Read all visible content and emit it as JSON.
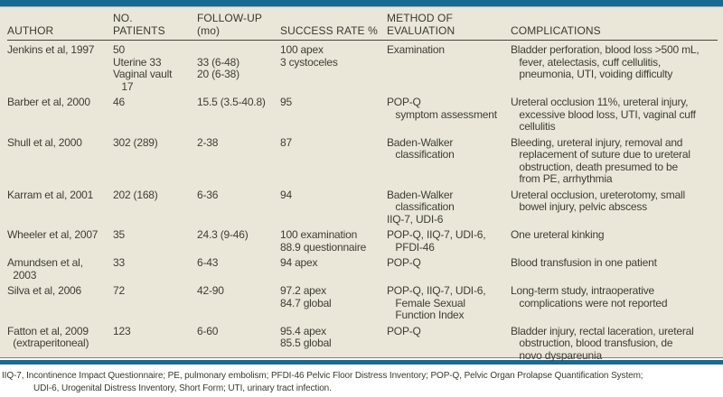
{
  "colors": {
    "accent_bar": "#1a6b93",
    "table_background": "#eae7d8",
    "header_rule": "#45453c",
    "text": "#3e3d34"
  },
  "table": {
    "header": {
      "author": "AUTHOR",
      "patients": "NO.\nPATIENTS",
      "followup": "FOLLOW-UP\n(mo)",
      "success": "SUCCESS RATE %",
      "method": "METHOD OF\nEVALUATION",
      "complications": "COMPLICATIONS"
    },
    "rows": [
      {
        "author": [
          "Jenkins et al, 1997"
        ],
        "patients": [
          "50",
          "Uterine 33",
          "Vaginal vault",
          "   17"
        ],
        "followup": [
          "",
          "33 (6-48)",
          "20 (6-38)"
        ],
        "success": [
          "100 apex",
          "3 cystoceles"
        ],
        "method": [
          "Examination"
        ],
        "complications": [
          "Bladder perforation, blood loss >500 mL,",
          "   fever, atelectasis, cuff cellulitis,",
          "   pneumonia, UTI, voiding difficulty"
        ]
      },
      {
        "author": [
          "Barber et al, 2000"
        ],
        "patients": [
          "46"
        ],
        "followup": [
          "15.5 (3.5-40.8)"
        ],
        "success": [
          "95"
        ],
        "method": [
          "POP-Q",
          "   symptom assessment"
        ],
        "complications": [
          "Ureteral occlusion 11%, ureteral injury,",
          "   excessive blood loss, UTI, vaginal cuff",
          "   cellulitis"
        ]
      },
      {
        "author": [
          "Shull et al, 2000"
        ],
        "patients": [
          "302 (289)"
        ],
        "followup": [
          "2-38"
        ],
        "success": [
          "87"
        ],
        "method": [
          "Baden-Walker",
          "   classification"
        ],
        "complications": [
          "Bleeding, ureteral injury, removal and",
          "   replacement of suture due to ureteral",
          "   obstruction, death presumed to be",
          "   from PE, arrhythmia"
        ]
      },
      {
        "author": [
          "Karram et al, 2001"
        ],
        "patients": [
          "202 (168)"
        ],
        "followup": [
          "6-36"
        ],
        "success": [
          "94"
        ],
        "method": [
          "Baden-Walker",
          "   classification",
          "IIQ-7, UDI-6"
        ],
        "complications": [
          "Ureteral occlusion, ureterotomy, small",
          "   bowel injury, pelvic abscess"
        ]
      },
      {
        "author": [
          "Wheeler et al, 2007"
        ],
        "patients": [
          "35"
        ],
        "followup": [
          "24.3 (9-46)"
        ],
        "success": [
          "100 examination",
          "88.9 questionnaire"
        ],
        "method": [
          "POP-Q, IIQ-7, UDI-6,",
          "   PFDI-46"
        ],
        "complications": [
          "One ureteral kinking"
        ]
      },
      {
        "author": [
          "Amundsen et al,",
          "  2003"
        ],
        "patients": [
          "33"
        ],
        "followup": [
          "6-43"
        ],
        "success": [
          "94 apex"
        ],
        "method": [
          "POP-Q"
        ],
        "complications": [
          "Blood transfusion in one patient"
        ]
      },
      {
        "author": [
          "Silva et al, 2006"
        ],
        "patients": [
          "72"
        ],
        "followup": [
          "42-90"
        ],
        "success": [
          "97.2 apex",
          "84.7 global"
        ],
        "method": [
          "POP-Q, IIQ-7, UDI-6,",
          "   Female Sexual",
          "   Function Index"
        ],
        "complications": [
          "Long-term study, intraoperative",
          "   complications were not reported"
        ]
      },
      {
        "author": [
          "Fatton et al, 2009",
          "  (extraperitoneal)"
        ],
        "patients": [
          "123"
        ],
        "followup": [
          "6-60"
        ],
        "success": [
          "95.4 apex",
          "85.5 global"
        ],
        "method": [
          "POP-Q"
        ],
        "complications": [
          "Bladder injury, rectal laceration, ureteral",
          "   obstruction, blood transfusion, de",
          "   novo dyspareunia"
        ]
      }
    ]
  },
  "footnote": {
    "line1": "IIQ-7, Incontinence Impact Questionnaire; PE, pulmonary embolism; PFDI-46 Pelvic Floor Distress Inventory; POP-Q, Pelvic Organ Prolapse Quantification System;",
    "line2": "UDI-6, Urogenital Distress Inventory, Short Form; UTI, urinary tract infection."
  }
}
